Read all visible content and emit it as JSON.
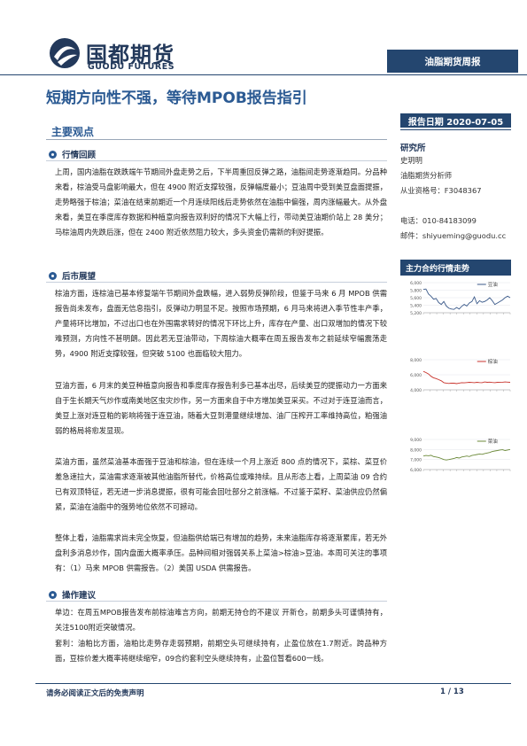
{
  "header": {
    "logo_cn": "国都期货",
    "logo_en": "GUODU FUTURES",
    "report_type": "油脂期货周报"
  },
  "title": "短期方向性不强，等待MPOB报告指引",
  "report_date": "报告日期  2020-07-05",
  "main_section": "主要观点",
  "sections": [
    {
      "heading": "行情回顾",
      "paragraphs": [
        "上周，国内油脂在跌跌端午节期间外盘走势之后，下半周重回反弹之路，油脂间走势逐渐趋同。分品种来看，棕油受马盘影响最大，但在 4900 附近支撑较强，反弹幅度最小；豆油周中受到美豆盘面提振，走势略强于棕油；菜油在结束前期近一个月连续阳线后走势依然在油脂中偏强，周内涨幅最大。从外盘来看，美豆在季度库存数据和种植意向报告双利好的情况下大幅上行，带动美豆油期价站上 28 美分；马棕油周内先跌后涨，但在 2400 附近依然阻力较大，多头资金仍需新的利好提振。"
      ]
    },
    {
      "heading": "后市展望",
      "paragraphs": [
        "棕油方面，连棕油已基本修复端午节期间外盘跌幅，进入弱势反弹阶段，但鉴于马来 6 月 MPOB 供需报告尚未发布，盘面无信息指引，反弹动力明显不足。按照市场预期，6 月马来将进入季节性丰产季，产量将环比增加，不过出口也在外围需求转好的情况下环比上升，库存在产量、出口双增加的情况下较难预测，方向性不甚明朗。因此若无豆油带动，下周棕油大概率在周五报告发布之前延续窄幅震荡走势，4900 附近支撑较强，但突破 5100 也面临较大阻力。",
        "豆油方面，6 月末的美豆种植意向报告和季度库存报告利多已基本出尽，后续美豆的提振动力一方面来自于生长期天气炒作或南美地区虫灾炒作，另一方面来自于中方增加美豆采买。不过对于连豆油而言，美豆上涨对连豆粕的影响将强于连豆油，随着大豆到港量继续增加、油厂压榨开工率维持高位，粕强油弱的格局将愈发显现。",
        "菜油方面，虽然菜油基本面强于豆油和棕油，但在连续一个月上涨近 800 点的情况下，菜棕、菜豆价差急速拉大，菜油需求逐渐被其他油脂所替代，价格高位或难持续。且从形态上看，上周菜油 09 合约已有双顶特征，若无进一步消息提振，很有可能会回吐部分之前涨幅。不过鉴于菜籽、菜油供应仍然偏紧，菜油在油脂中的强势地位依然不可撼动。",
        "整体上看，油脂需求尚未完全恢复，但油脂供给端已有增加的趋势，未来油脂库存将逐渐累库，若无外盘利多消息炒作，国内盘面大概率承压。品种间相对强弱关系上菜油>棕油>豆油。本周可关注的事项有：（1）马来 MPOB 供需报告。（2）美国 USDA 供需报告。"
      ]
    },
    {
      "heading": "操作建议",
      "paragraphs": [
        "单边：在周五MPOB报告发布前棕油难言方向，前期无持仓的不建议 开新仓，前期多头可谨慎持有，关注5100附近突破情况。",
        "套利：油粕比方面，油粕比走势存走弱预期，前期空头可继续持有，止盈位放在1.7附近。跨品种方面，豆棕价差大概率将继续缩窄，09合约套利空头继续持有，止盈位暂看600一线。"
      ]
    }
  ],
  "sidebar": {
    "research_title": "研究所",
    "analyst": "史玥明",
    "role": "油脂期货分析师",
    "license": "从业资格号：F3048367",
    "phone": "电话：010-84183099",
    "email": "邮件：shiyueming@guodu.cc",
    "chart_section_title": "主力合约行情走势"
  },
  "chart_data": [
    {
      "type": "line",
      "title": "",
      "series": [
        {
          "name": "豆油",
          "values": [
            5820,
            5830,
            5700,
            5640,
            5560,
            5580,
            5470,
            5420,
            5500,
            5380,
            5320,
            5300,
            5290,
            5340,
            5300,
            5370,
            5420,
            5380,
            5460,
            5500,
            5620,
            5440,
            5520,
            5480,
            5500,
            5540,
            5600,
            5520,
            5420,
            5460,
            5500,
            5540,
            5600,
            5640,
            5600
          ]
        }
      ],
      "ylim": [
        5200,
        6000
      ],
      "yticks": [
        "6,000",
        "5,800",
        "5,600",
        "5,400",
        "5,200"
      ],
      "color": "#3b5a8a"
    },
    {
      "type": "line",
      "title": "",
      "series": [
        {
          "name": "棕油",
          "values": [
            6450,
            6300,
            6100,
            5800,
            5600,
            5500,
            5350,
            5200,
            4950,
            4900,
            4850,
            4900,
            4880,
            4820,
            4900,
            4950,
            4930,
            4960,
            5000,
            4980,
            4950,
            5000,
            4970,
            4950,
            5050,
            5000,
            5020,
            4980,
            4950,
            5000,
            4990,
            5010,
            5050,
            5020,
            5000
          ]
        }
      ],
      "ylim": [
        4000,
        8000
      ],
      "yticks": [
        "8,000",
        "6,000",
        "4,000"
      ],
      "color": "#c8332c"
    },
    {
      "type": "line",
      "title": "",
      "series": [
        {
          "name": "菜油",
          "values": [
            7350,
            7400,
            7380,
            7420,
            7300,
            7250,
            7200,
            7100,
            7000,
            6950,
            7000,
            7050,
            7100,
            7200,
            7150,
            7250,
            7300,
            7350,
            7300,
            7400,
            7450,
            7500,
            7550,
            7520,
            7600,
            7650,
            7700,
            7800,
            7850,
            7900,
            7950,
            7980,
            7900,
            7950,
            8000
          ]
        }
      ],
      "ylim": [
        6000,
        9000
      ],
      "yticks": [
        "9,000",
        "8,000",
        "7,000",
        "6,000"
      ],
      "color": "#6c8a3a"
    }
  ],
  "footer": {
    "disclaimer": "请务必阅读正文后的免责声明",
    "page": "1 / 13"
  }
}
